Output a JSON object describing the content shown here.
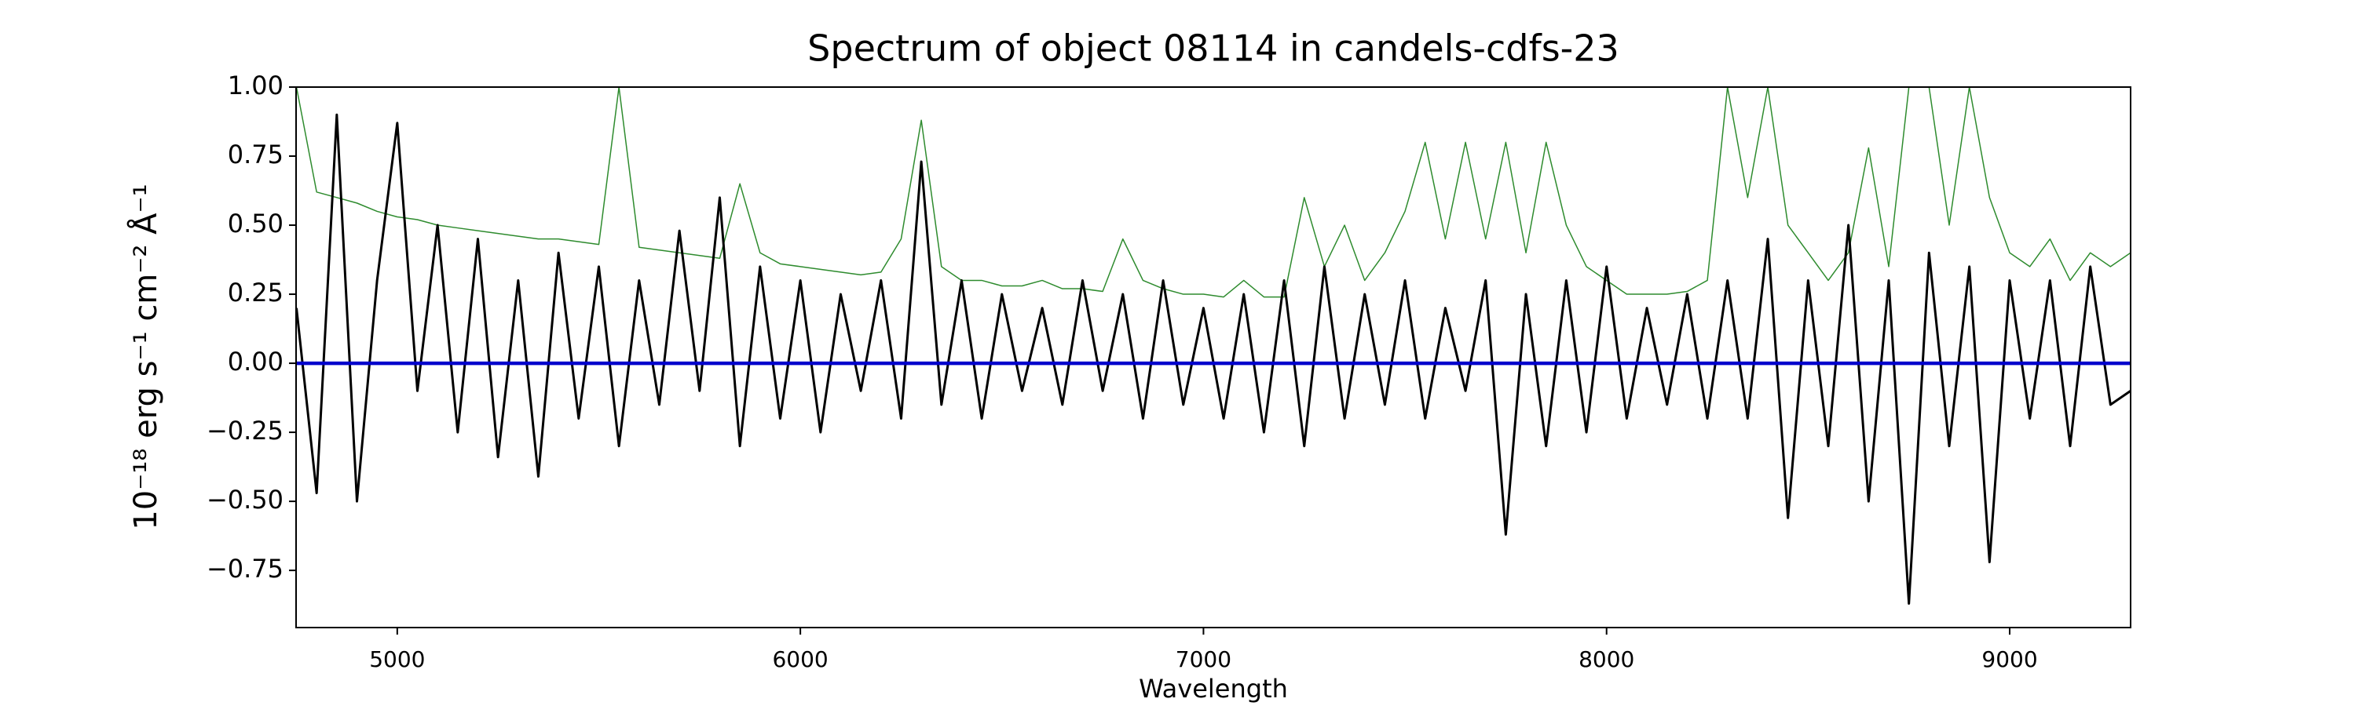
{
  "chart_data": {
    "type": "line",
    "title": "Spectrum of object 08114 in candels-cdfs-23",
    "xlabel": "Wavelength",
    "ylabel": "10⁻¹⁸ erg s⁻¹ cm⁻² Å⁻¹",
    "x": [
      4750,
      4800,
      4850,
      4900,
      4950,
      5000,
      5050,
      5100,
      5150,
      5200,
      5250,
      5300,
      5350,
      5400,
      5450,
      5500,
      5550,
      5600,
      5650,
      5700,
      5750,
      5800,
      5850,
      5900,
      5950,
      6000,
      6050,
      6100,
      6150,
      6200,
      6250,
      6300,
      6350,
      6400,
      6450,
      6500,
      6550,
      6600,
      6650,
      6700,
      6750,
      6800,
      6850,
      6900,
      6950,
      7000,
      7050,
      7100,
      7150,
      7200,
      7250,
      7300,
      7350,
      7400,
      7450,
      7500,
      7550,
      7600,
      7650,
      7700,
      7750,
      7800,
      7850,
      7900,
      7950,
      8000,
      8050,
      8100,
      8150,
      8200,
      8250,
      8300,
      8350,
      8400,
      8450,
      8500,
      8550,
      8600,
      8650,
      8700,
      8750,
      8800,
      8850,
      8900,
      8950,
      9000,
      9050,
      9100,
      9150,
      9200,
      9250,
      9300
    ],
    "series": [
      {
        "color": "#2e8b2e",
        "width": 1.5,
        "values": [
          1.0,
          0.62,
          0.6,
          0.58,
          0.55,
          0.53,
          0.52,
          0.5,
          0.49,
          0.48,
          0.47,
          0.46,
          0.45,
          0.45,
          0.44,
          0.43,
          1.0,
          0.42,
          0.41,
          0.4,
          0.39,
          0.38,
          0.65,
          0.4,
          0.36,
          0.35,
          0.34,
          0.33,
          0.32,
          0.33,
          0.45,
          0.88,
          0.35,
          0.3,
          0.3,
          0.28,
          0.28,
          0.3,
          0.27,
          0.27,
          0.26,
          0.45,
          0.3,
          0.27,
          0.25,
          0.25,
          0.24,
          0.3,
          0.24,
          0.24,
          0.6,
          0.35,
          0.5,
          0.3,
          0.4,
          0.55,
          0.8,
          0.45,
          0.8,
          0.45,
          0.8,
          0.4,
          0.8,
          0.5,
          0.35,
          0.3,
          0.25,
          0.25,
          0.25,
          0.26,
          0.3,
          1.0,
          0.6,
          1.0,
          0.5,
          0.4,
          0.3,
          0.4,
          0.78,
          0.35,
          1.0,
          1.0,
          0.5,
          1.0,
          0.6,
          0.4,
          0.35,
          0.45,
          0.3,
          0.4,
          0.35,
          0.4
        ]
      },
      {
        "color": "#000000",
        "width": 3,
        "values": [
          0.2,
          -0.47,
          0.9,
          -0.5,
          0.3,
          0.87,
          -0.1,
          0.5,
          -0.25,
          0.45,
          -0.34,
          0.3,
          -0.41,
          0.4,
          -0.2,
          0.35,
          -0.3,
          0.3,
          -0.15,
          0.48,
          -0.1,
          0.6,
          -0.3,
          0.35,
          -0.2,
          0.3,
          -0.25,
          0.25,
          -0.1,
          0.3,
          -0.2,
          0.73,
          -0.15,
          0.3,
          -0.2,
          0.25,
          -0.1,
          0.2,
          -0.15,
          0.3,
          -0.1,
          0.25,
          -0.2,
          0.3,
          -0.15,
          0.2,
          -0.2,
          0.25,
          -0.25,
          0.3,
          -0.3,
          0.35,
          -0.2,
          0.25,
          -0.15,
          0.3,
          -0.2,
          0.2,
          -0.1,
          0.3,
          -0.62,
          0.25,
          -0.3,
          0.3,
          -0.25,
          0.35,
          -0.2,
          0.2,
          -0.15,
          0.25,
          -0.2,
          0.3,
          -0.2,
          0.45,
          -0.56,
          0.3,
          -0.3,
          0.5,
          -0.5,
          0.3,
          -0.87,
          0.4,
          -0.3,
          0.35,
          -0.72,
          0.3,
          -0.2,
          0.3,
          -0.3,
          0.35,
          -0.15,
          -0.1
        ]
      },
      {
        "color": "#0000cc",
        "width": 4.5,
        "values": [
          0,
          0,
          0,
          0,
          0,
          0,
          0,
          0,
          0,
          0,
          0,
          0,
          0,
          0,
          0,
          0,
          0,
          0,
          0,
          0,
          0,
          0,
          0,
          0,
          0,
          0,
          0,
          0,
          0,
          0,
          0,
          0,
          0,
          0,
          0,
          0,
          0,
          0,
          0,
          0,
          0,
          0,
          0,
          0,
          0,
          0,
          0,
          0,
          0,
          0,
          0,
          0,
          0,
          0,
          0,
          0,
          0,
          0,
          0,
          0,
          0,
          0,
          0,
          0,
          0,
          0,
          0,
          0,
          0,
          0,
          0,
          0,
          0,
          0,
          0,
          0,
          0,
          0,
          0,
          0,
          0,
          0,
          0,
          0,
          0,
          0,
          0,
          0,
          0,
          0,
          0,
          0
        ]
      }
    ],
    "xlim": [
      4749,
      9300
    ],
    "xticks": [
      5000,
      6000,
      7000,
      8000,
      9000
    ],
    "ylim": [
      -0.957,
      1.0
    ],
    "yticks": [
      {
        "value": 1,
        "label": "1.00"
      },
      {
        "value": 0.75,
        "label": "0.75"
      },
      {
        "value": 0.5,
        "label": "0.50"
      },
      {
        "value": 0.25,
        "label": "0.25"
      },
      {
        "value": 0,
        "label": "0.00"
      },
      {
        "value": -0.25,
        "label": "−0.25"
      },
      {
        "value": -0.5,
        "label": "−0.50"
      },
      {
        "value": -0.75,
        "label": "−0.75"
      }
    ]
  }
}
